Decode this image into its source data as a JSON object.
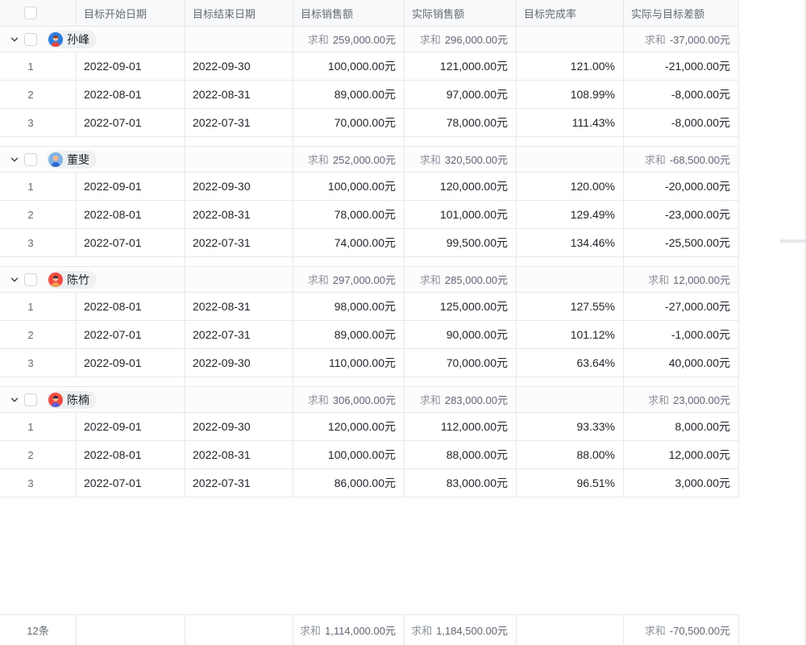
{
  "colors": {
    "border": "#e7e8ea",
    "header_bg": "#f8f9fa",
    "group_row_bg": "#fcfcfd",
    "text_primary": "#1f2329",
    "text_secondary": "#646a73",
    "text_muted": "#8f959e",
    "pill_bg": "#eef0f2"
  },
  "table": {
    "sum_label": "求和",
    "columns": [
      {
        "label": "目标开始日期"
      },
      {
        "label": "目标结束日期"
      },
      {
        "label": "目标销售额"
      },
      {
        "label": "实际销售额"
      },
      {
        "label": "目标完成率"
      },
      {
        "label": "实际与目标差额"
      }
    ],
    "groups": [
      {
        "name": "孙峰",
        "avatar": {
          "bg": "#2b7de0",
          "hair": "#8b3a2a",
          "skin": "#f6c39f",
          "shirt": "#e8483f"
        },
        "summary": {
          "target": "259,000.00元",
          "actual": "296,000.00元",
          "diff": "-37,000.00元"
        },
        "rows": [
          {
            "index": "1",
            "start": "2022-09-01",
            "end": "2022-09-30",
            "target": "100,000.00元",
            "actual": "121,000.00元",
            "rate": "121.00%",
            "diff": "-21,000.00元"
          },
          {
            "index": "2",
            "start": "2022-08-01",
            "end": "2022-08-31",
            "target": "89,000.00元",
            "actual": "97,000.00元",
            "rate": "108.99%",
            "diff": "-8,000.00元"
          },
          {
            "index": "3",
            "start": "2022-07-01",
            "end": "2022-07-31",
            "target": "70,000.00元",
            "actual": "78,000.00元",
            "rate": "111.43%",
            "diff": "-8,000.00元"
          }
        ]
      },
      {
        "name": "董斐",
        "avatar": {
          "bg": "#7fb2e5",
          "hair": "#f0b990",
          "skin": "#f0b990",
          "shirt": "#2e66d0"
        },
        "summary": {
          "target": "252,000.00元",
          "actual": "320,500.00元",
          "diff": "-68,500.00元"
        },
        "rows": [
          {
            "index": "1",
            "start": "2022-09-01",
            "end": "2022-09-30",
            "target": "100,000.00元",
            "actual": "120,000.00元",
            "rate": "120.00%",
            "diff": "-20,000.00元"
          },
          {
            "index": "2",
            "start": "2022-08-01",
            "end": "2022-08-31",
            "target": "78,000.00元",
            "actual": "101,000.00元",
            "rate": "129.49%",
            "diff": "-23,000.00元"
          },
          {
            "index": "3",
            "start": "2022-07-01",
            "end": "2022-07-31",
            "target": "74,000.00元",
            "actual": "99,500.00元",
            "rate": "134.46%",
            "diff": "-25,500.00元"
          }
        ]
      },
      {
        "name": "陈竹",
        "avatar": {
          "bg": "#f5493f",
          "hair": "#45302a",
          "skin": "#f6c39f",
          "shirt": "#f2a24c"
        },
        "summary": {
          "target": "297,000.00元",
          "actual": "285,000.00元",
          "diff": "12,000.00元"
        },
        "rows": [
          {
            "index": "1",
            "start": "2022-08-01",
            "end": "2022-08-31",
            "target": "98,000.00元",
            "actual": "125,000.00元",
            "rate": "127.55%",
            "diff": "-27,000.00元"
          },
          {
            "index": "2",
            "start": "2022-07-01",
            "end": "2022-07-31",
            "target": "89,000.00元",
            "actual": "90,000.00元",
            "rate": "101.12%",
            "diff": "-1,000.00元"
          },
          {
            "index": "3",
            "start": "2022-09-01",
            "end": "2022-09-30",
            "target": "110,000.00元",
            "actual": "70,000.00元",
            "rate": "63.64%",
            "diff": "40,000.00元"
          }
        ]
      },
      {
        "name": "陈楠",
        "avatar": {
          "bg": "#f5493f",
          "hair": "#33283a",
          "skin": "#f6c39f",
          "shirt": "#5a5fd8"
        },
        "summary": {
          "target": "306,000.00元",
          "actual": "283,000.00元",
          "diff": "23,000.00元"
        },
        "rows": [
          {
            "index": "1",
            "start": "2022-09-01",
            "end": "2022-09-30",
            "target": "120,000.00元",
            "actual": "112,000.00元",
            "rate": "93.33%",
            "diff": "8,000.00元"
          },
          {
            "index": "2",
            "start": "2022-08-01",
            "end": "2022-08-31",
            "target": "100,000.00元",
            "actual": "88,000.00元",
            "rate": "88.00%",
            "diff": "12,000.00元"
          },
          {
            "index": "3",
            "start": "2022-07-01",
            "end": "2022-07-31",
            "target": "86,000.00元",
            "actual": "83,000.00元",
            "rate": "96.51%",
            "diff": "3,000.00元"
          }
        ]
      }
    ],
    "footer": {
      "count": "12条",
      "sums": {
        "target": "1,114,000.00元",
        "actual": "1,184,500.00元",
        "diff": "-70,500.00元"
      }
    }
  }
}
